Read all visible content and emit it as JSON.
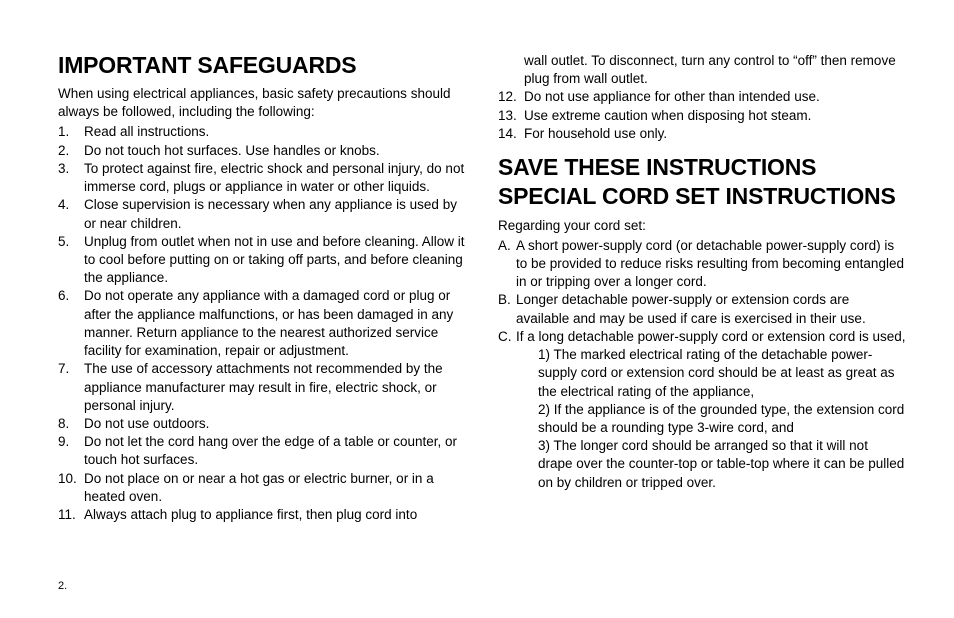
{
  "left": {
    "heading": "IMPORTANT SAFEGUARDS",
    "intro": "When using electrical appliances, basic safety precautions should always be followed, including the following:",
    "items": [
      {
        "n": "1.",
        "t": "Read all instructions."
      },
      {
        "n": "2.",
        "t": "Do not touch hot surfaces. Use handles or knobs."
      },
      {
        "n": "3.",
        "t": "To protect against fire, electric shock and personal injury, do not immerse cord, plugs or appliance in water or other liquids."
      },
      {
        "n": "4.",
        "t": "Close supervision is necessary when any appliance is used by or near children."
      },
      {
        "n": "5.",
        "t": "Unplug from outlet when not in use and before cleaning. Allow it to cool before putting on or taking off parts, and before cleaning the appliance."
      },
      {
        "n": "6.",
        "t": "Do not operate any appliance with a damaged cord or plug or after the appliance malfunctions, or has been damaged in any manner. Return appliance to the nearest authorized service facility for examination, repair or adjustment."
      },
      {
        "n": "7.",
        "t": "The use of accessory attachments not recommended by the appliance manufacturer may result in fire, electric shock, or personal injury."
      },
      {
        "n": "8.",
        "t": "Do not use outdoors."
      },
      {
        "n": "9.",
        "t": "Do not let the cord hang over the edge of a table or counter, or touch hot surfaces."
      },
      {
        "n": "10.",
        "t": "Do not place on or near a hot gas or electric burner, or in a heated oven."
      },
      {
        "n": "11.",
        "t": "Always attach plug to appliance first, then plug cord into"
      }
    ]
  },
  "right": {
    "cont11": "wall outlet. To disconnect, turn any control to “off” then remove plug from wall outlet.",
    "items": [
      {
        "n": "12.",
        "t": "Do not use appliance for other than intended use."
      },
      {
        "n": "13.",
        "t": "Use extreme caution when disposing hot steam."
      },
      {
        "n": "14.",
        "t": "For household use only."
      }
    ],
    "heading2": "SAVE THESE INSTRUCTIONS SPECIAL CORD SET INSTRUCTIONS",
    "sub": "Regarding your cord set:",
    "alphas": [
      {
        "a": "A.",
        "t": "A short power-supply cord (or detachable power-supply cord) is to be provided to reduce risks resulting from becoming entangled in or tripping over a longer cord."
      },
      {
        "a": "B.",
        "t": "Longer detachable power-supply or extension cords are available and may be used if care is exercised in their use."
      },
      {
        "a": "C.",
        "t": "If a long detachable power-supply cord or extension cord is used,"
      }
    ],
    "csubs": [
      "1) The marked electrical rating of the detachable power-supply cord or extension cord should be at least as great as the electrical rating of the appliance,",
      "2) If the appliance is of the grounded type, the exten­sion cord should be a rounding type 3-wire cord, and",
      "3) The longer cord should be arranged so that it will not drape over the counter-top or table-top where it can be pulled on by children or tripped over."
    ]
  },
  "pageNumber": "2."
}
